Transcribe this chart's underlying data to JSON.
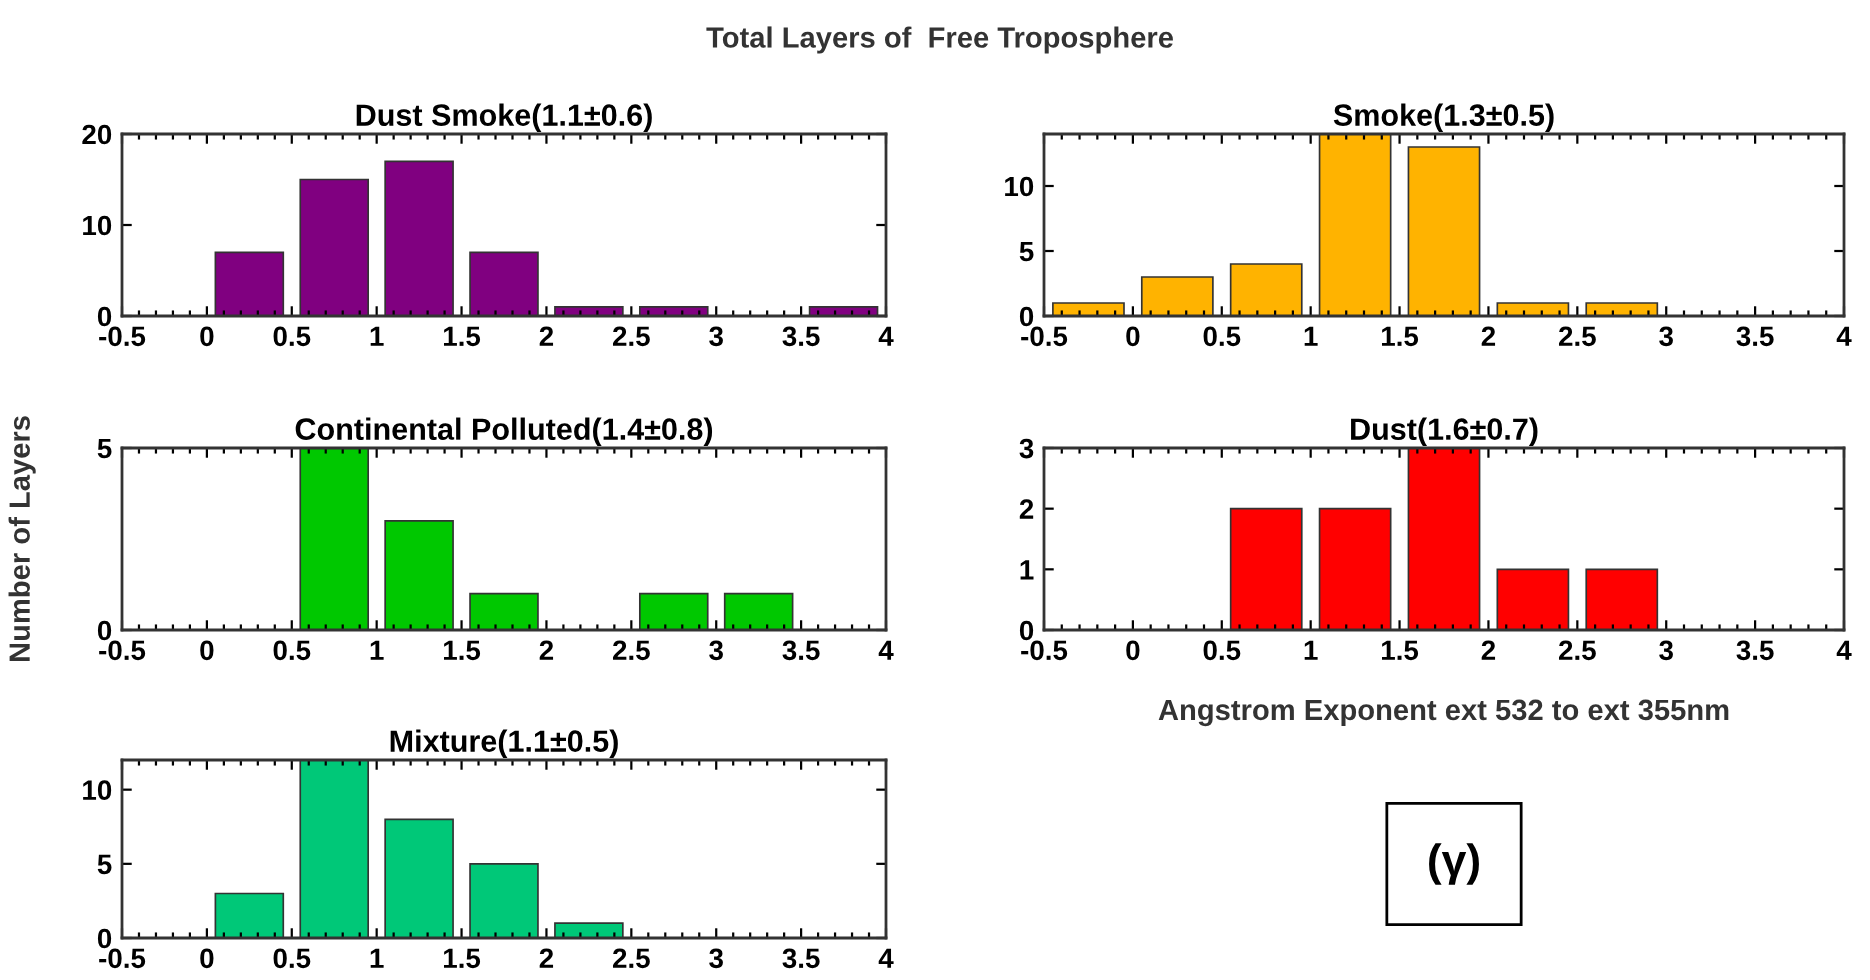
{
  "chart_data": [
    {
      "type": "histogram",
      "title": "Dust Smoke(1.1±0.6)",
      "bins": [
        -0.5,
        0,
        0.5,
        1,
        1.5,
        2,
        2.5,
        3,
        3.5,
        4
      ],
      "values": [
        0,
        7,
        15,
        17,
        7,
        1,
        1,
        0,
        1
      ],
      "color": "#800080",
      "xlim": [
        -0.5,
        4
      ],
      "xticks": [
        -0.5,
        0,
        0.5,
        1,
        1.5,
        2,
        2.5,
        3,
        3.5,
        4
      ],
      "ylim": [
        0,
        20
      ],
      "yticks": [
        0,
        10,
        20
      ],
      "annotations": [
        "Total Layers of  Free Troposphere"
      ]
    },
    {
      "type": "histogram",
      "title": "Smoke(1.3±0.5)",
      "bins": [
        -0.5,
        0,
        0.5,
        1,
        1.5,
        2,
        2.5,
        3,
        3.5,
        4
      ],
      "values": [
        1,
        3,
        4,
        14,
        13,
        1,
        1,
        0,
        0
      ],
      "color": "#ffb300",
      "xlim": [
        -0.5,
        4
      ],
      "xticks": [
        -0.5,
        0,
        0.5,
        1,
        1.5,
        2,
        2.5,
        3,
        3.5,
        4
      ],
      "ylim": [
        0,
        14
      ],
      "yticks": [
        0,
        5,
        10
      ]
    },
    {
      "type": "histogram",
      "title": "Continental Polluted(1.4±0.8)",
      "ylabel": "Number of Layers",
      "bins": [
        -0.5,
        0,
        0.5,
        1,
        1.5,
        2,
        2.5,
        3,
        3.5,
        4
      ],
      "values": [
        0,
        0,
        5,
        3,
        1,
        0,
        1,
        1,
        0
      ],
      "color": "#00c800",
      "xlim": [
        -0.5,
        4
      ],
      "xticks": [
        -0.5,
        0,
        0.5,
        1,
        1.5,
        2,
        2.5,
        3,
        3.5,
        4
      ],
      "ylim": [
        0,
        5
      ],
      "yticks": [
        0,
        5
      ]
    },
    {
      "type": "histogram",
      "title": "Dust(1.6±0.7)",
      "xlabel": "Angstrom Exponent ext 532 to ext 355nm",
      "bins": [
        -0.5,
        0,
        0.5,
        1,
        1.5,
        2,
        2.5,
        3,
        3.5,
        4
      ],
      "values": [
        0,
        0,
        2,
        2,
        3,
        1,
        1,
        0,
        0
      ],
      "color": "#ff0000",
      "xlim": [
        -0.5,
        4
      ],
      "xticks": [
        -0.5,
        0,
        0.5,
        1,
        1.5,
        2,
        2.5,
        3,
        3.5,
        4
      ],
      "ylim": [
        0,
        3
      ],
      "yticks": [
        0,
        1,
        2,
        3
      ],
      "annotations": [
        "(γ)"
      ]
    },
    {
      "type": "histogram",
      "title": "Mixture(1.1±0.5)",
      "bins": [
        -0.5,
        0,
        0.5,
        1,
        1.5,
        2,
        2.5,
        3,
        3.5,
        4
      ],
      "values": [
        0,
        3,
        12,
        8,
        5,
        1,
        0,
        0,
        0
      ],
      "color": "#00c878",
      "xlim": [
        -0.5,
        4
      ],
      "xticks": [
        -0.5,
        0,
        0.5,
        1,
        1.5,
        2,
        2.5,
        3,
        3.5,
        4
      ],
      "ylim": [
        0,
        12
      ],
      "yticks": [
        0,
        5,
        10
      ]
    }
  ]
}
